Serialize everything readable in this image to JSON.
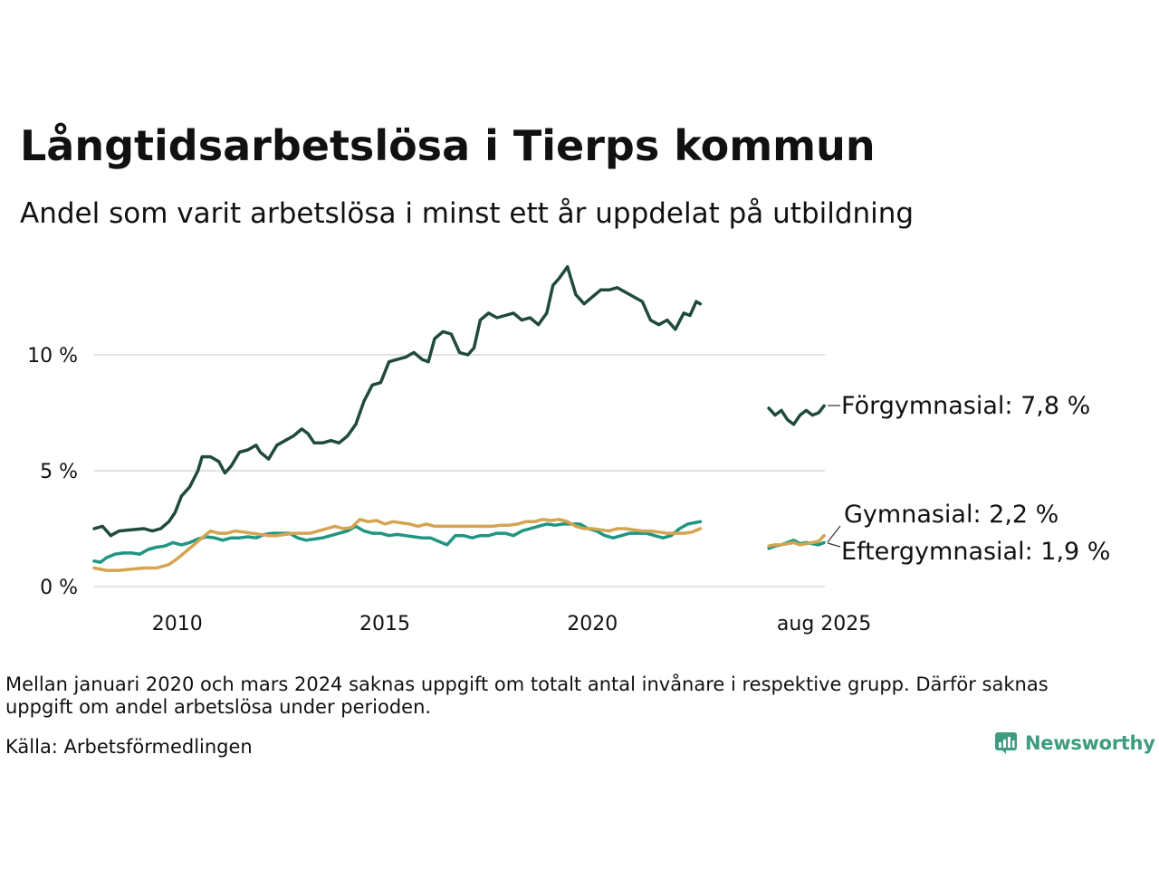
{
  "title": "Långtidsarbetslösa i Tierps kommun",
  "subtitle": "Andel som varit arbetslösa i minst ett år uppdelat på utbildning",
  "note": "Mellan januari 2020 och mars 2024 saknas uppgift om totalt antal invånare i respektive grupp. Därför saknas uppgift om andel arbetslösa under perioden.",
  "source": "Källa: Arbetsförmedlingen",
  "brand": "Newsworthy",
  "colors": {
    "forgymnasial": "#1f4a3c",
    "gymnasial": "#d4a450",
    "eftergymnasial": "#1f9683",
    "grid": "#e3e3e3",
    "brand": "#3e9c80"
  },
  "chart_data": {
    "type": "line",
    "x_unit": "year",
    "xlim": [
      2008.0,
      2025.6
    ],
    "ylim": [
      0,
      14
    ],
    "yticks": [
      {
        "value": 0,
        "label": "0 %"
      },
      {
        "value": 5,
        "label": "5 %"
      },
      {
        "value": 10,
        "label": "10 %"
      }
    ],
    "xticks": [
      {
        "value": 2010,
        "label": "2010"
      },
      {
        "value": 2015,
        "label": "2015"
      },
      {
        "value": 2020,
        "label": "2020"
      },
      {
        "value": 2025.58,
        "label": "aug 2025"
      }
    ],
    "grid": "horizontal",
    "series": [
      {
        "name": "Förgymnasial",
        "color": "#1f4a3c",
        "end_label": "Förgymnasial: 7,8 %",
        "segments": [
          [
            [
              2008.0,
              2.5
            ],
            [
              2008.2,
              2.6
            ],
            [
              2008.4,
              2.2
            ],
            [
              2008.6,
              2.4
            ],
            [
              2008.9,
              2.45
            ],
            [
              2009.2,
              2.5
            ],
            [
              2009.4,
              2.4
            ],
            [
              2009.6,
              2.5
            ],
            [
              2009.8,
              2.8
            ],
            [
              2009.95,
              3.2
            ],
            [
              2010.1,
              3.9
            ],
            [
              2010.3,
              4.3
            ],
            [
              2010.5,
              5.0
            ],
            [
              2010.6,
              5.6
            ],
            [
              2010.8,
              5.6
            ],
            [
              2011.0,
              5.4
            ],
            [
              2011.15,
              4.9
            ],
            [
              2011.3,
              5.2
            ],
            [
              2011.5,
              5.8
            ],
            [
              2011.7,
              5.9
            ],
            [
              2011.9,
              6.1
            ],
            [
              2012.0,
              5.8
            ],
            [
              2012.2,
              5.5
            ],
            [
              2012.4,
              6.1
            ],
            [
              2012.6,
              6.3
            ],
            [
              2012.8,
              6.5
            ],
            [
              2013.0,
              6.8
            ],
            [
              2013.15,
              6.6
            ],
            [
              2013.3,
              6.2
            ],
            [
              2013.5,
              6.2
            ],
            [
              2013.7,
              6.3
            ],
            [
              2013.9,
              6.2
            ],
            [
              2014.1,
              6.5
            ],
            [
              2014.3,
              7.0
            ],
            [
              2014.5,
              8.0
            ],
            [
              2014.7,
              8.7
            ],
            [
              2014.9,
              8.8
            ],
            [
              2015.1,
              9.7
            ],
            [
              2015.3,
              9.8
            ],
            [
              2015.5,
              9.9
            ],
            [
              2015.7,
              10.1
            ],
            [
              2015.9,
              9.8
            ],
            [
              2016.05,
              9.7
            ],
            [
              2016.2,
              10.7
            ],
            [
              2016.4,
              11.0
            ],
            [
              2016.6,
              10.9
            ],
            [
              2016.8,
              10.1
            ],
            [
              2017.0,
              10.0
            ],
            [
              2017.15,
              10.3
            ],
            [
              2017.3,
              11.5
            ],
            [
              2017.5,
              11.8
            ],
            [
              2017.7,
              11.6
            ],
            [
              2017.9,
              11.7
            ],
            [
              2018.1,
              11.8
            ],
            [
              2018.3,
              11.5
            ],
            [
              2018.5,
              11.6
            ],
            [
              2018.7,
              11.3
            ],
            [
              2018.9,
              11.8
            ],
            [
              2019.05,
              13.0
            ],
            [
              2019.2,
              13.3
            ],
            [
              2019.4,
              13.8
            ],
            [
              2019.6,
              12.6
            ],
            [
              2019.8,
              12.2
            ],
            [
              2020.0,
              12.5
            ],
            [
              2020.2,
              12.8
            ],
            [
              2020.4,
              12.8
            ],
            [
              2020.6,
              12.9
            ],
            [
              2020.8,
              12.7
            ],
            [
              2021.0,
              12.5
            ],
            [
              2021.2,
              12.3
            ],
            [
              2021.4,
              11.5
            ],
            [
              2021.6,
              11.3
            ],
            [
              2021.8,
              11.5
            ],
            [
              2022.0,
              11.1
            ],
            [
              2022.2,
              11.8
            ],
            [
              2022.35,
              11.7
            ],
            [
              2022.5,
              12.3
            ],
            [
              2022.6,
              12.2
            ]
          ],
          [
            [
              2024.25,
              7.7
            ],
            [
              2024.4,
              7.4
            ],
            [
              2024.55,
              7.6
            ],
            [
              2024.7,
              7.2
            ],
            [
              2024.85,
              7.0
            ],
            [
              2025.0,
              7.4
            ],
            [
              2025.15,
              7.6
            ],
            [
              2025.3,
              7.4
            ],
            [
              2025.45,
              7.5
            ],
            [
              2025.58,
              7.8
            ]
          ]
        ]
      },
      {
        "name": "Gymnasial",
        "color": "#d4a450",
        "end_label": "Gymnasial: 2,2 %",
        "segments": [
          [
            [
              2008.0,
              0.8
            ],
            [
              2008.3,
              0.7
            ],
            [
              2008.6,
              0.7
            ],
            [
              2008.9,
              0.75
            ],
            [
              2009.2,
              0.8
            ],
            [
              2009.5,
              0.8
            ],
            [
              2009.8,
              0.95
            ],
            [
              2010.0,
              1.2
            ],
            [
              2010.2,
              1.5
            ],
            [
              2010.4,
              1.8
            ],
            [
              2010.6,
              2.1
            ],
            [
              2010.8,
              2.4
            ],
            [
              2011.0,
              2.3
            ],
            [
              2011.2,
              2.3
            ],
            [
              2011.4,
              2.4
            ],
            [
              2011.6,
              2.35
            ],
            [
              2011.8,
              2.3
            ],
            [
              2012.0,
              2.25
            ],
            [
              2012.2,
              2.2
            ],
            [
              2012.4,
              2.2
            ],
            [
              2012.6,
              2.25
            ],
            [
              2012.8,
              2.3
            ],
            [
              2013.0,
              2.3
            ],
            [
              2013.2,
              2.3
            ],
            [
              2013.4,
              2.4
            ],
            [
              2013.6,
              2.5
            ],
            [
              2013.8,
              2.6
            ],
            [
              2014.0,
              2.5
            ],
            [
              2014.2,
              2.55
            ],
            [
              2014.4,
              2.9
            ],
            [
              2014.6,
              2.8
            ],
            [
              2014.8,
              2.85
            ],
            [
              2015.0,
              2.7
            ],
            [
              2015.2,
              2.8
            ],
            [
              2015.4,
              2.75
            ],
            [
              2015.6,
              2.7
            ],
            [
              2015.8,
              2.6
            ],
            [
              2016.0,
              2.7
            ],
            [
              2016.2,
              2.6
            ],
            [
              2016.4,
              2.6
            ],
            [
              2016.6,
              2.6
            ],
            [
              2016.8,
              2.6
            ],
            [
              2017.0,
              2.6
            ],
            [
              2017.2,
              2.6
            ],
            [
              2017.4,
              2.6
            ],
            [
              2017.6,
              2.6
            ],
            [
              2017.8,
              2.65
            ],
            [
              2018.0,
              2.65
            ],
            [
              2018.2,
              2.7
            ],
            [
              2018.4,
              2.8
            ],
            [
              2018.6,
              2.8
            ],
            [
              2018.8,
              2.9
            ],
            [
              2019.0,
              2.85
            ],
            [
              2019.2,
              2.9
            ],
            [
              2019.4,
              2.8
            ],
            [
              2019.6,
              2.6
            ],
            [
              2019.8,
              2.5
            ],
            [
              2020.0,
              2.5
            ],
            [
              2020.2,
              2.45
            ],
            [
              2020.4,
              2.4
            ],
            [
              2020.6,
              2.5
            ],
            [
              2020.8,
              2.5
            ],
            [
              2021.0,
              2.45
            ],
            [
              2021.2,
              2.4
            ],
            [
              2021.4,
              2.4
            ],
            [
              2021.6,
              2.35
            ],
            [
              2021.8,
              2.3
            ],
            [
              2022.0,
              2.3
            ],
            [
              2022.2,
              2.3
            ],
            [
              2022.4,
              2.35
            ],
            [
              2022.6,
              2.5
            ]
          ],
          [
            [
              2024.25,
              1.75
            ],
            [
              2024.4,
              1.8
            ],
            [
              2024.55,
              1.8
            ],
            [
              2024.7,
              1.85
            ],
            [
              2024.85,
              1.9
            ],
            [
              2025.0,
              1.8
            ],
            [
              2025.15,
              1.85
            ],
            [
              2025.3,
              1.9
            ],
            [
              2025.45,
              1.95
            ],
            [
              2025.58,
              2.2
            ]
          ]
        ]
      },
      {
        "name": "Eftergymnasial",
        "color": "#1f9683",
        "end_label": "Eftergymnasial: 1,9 %",
        "segments": [
          [
            [
              2008.0,
              1.1
            ],
            [
              2008.15,
              1.05
            ],
            [
              2008.3,
              1.25
            ],
            [
              2008.5,
              1.4
            ],
            [
              2008.7,
              1.45
            ],
            [
              2008.9,
              1.45
            ],
            [
              2009.1,
              1.4
            ],
            [
              2009.3,
              1.6
            ],
            [
              2009.5,
              1.7
            ],
            [
              2009.7,
              1.75
            ],
            [
              2009.9,
              1.9
            ],
            [
              2010.1,
              1.8
            ],
            [
              2010.3,
              1.9
            ],
            [
              2010.5,
              2.05
            ],
            [
              2010.7,
              2.15
            ],
            [
              2010.9,
              2.1
            ],
            [
              2011.1,
              2.0
            ],
            [
              2011.3,
              2.1
            ],
            [
              2011.5,
              2.1
            ],
            [
              2011.7,
              2.15
            ],
            [
              2011.9,
              2.1
            ],
            [
              2012.1,
              2.25
            ],
            [
              2012.3,
              2.3
            ],
            [
              2012.5,
              2.3
            ],
            [
              2012.7,
              2.3
            ],
            [
              2012.9,
              2.1
            ],
            [
              2013.1,
              2.0
            ],
            [
              2013.3,
              2.05
            ],
            [
              2013.5,
              2.1
            ],
            [
              2013.7,
              2.2
            ],
            [
              2013.9,
              2.3
            ],
            [
              2014.1,
              2.4
            ],
            [
              2014.3,
              2.6
            ],
            [
              2014.5,
              2.4
            ],
            [
              2014.7,
              2.3
            ],
            [
              2014.9,
              2.3
            ],
            [
              2015.1,
              2.2
            ],
            [
              2015.3,
              2.25
            ],
            [
              2015.5,
              2.2
            ],
            [
              2015.7,
              2.15
            ],
            [
              2015.9,
              2.1
            ],
            [
              2016.1,
              2.1
            ],
            [
              2016.3,
              1.95
            ],
            [
              2016.5,
              1.8
            ],
            [
              2016.7,
              2.2
            ],
            [
              2016.9,
              2.2
            ],
            [
              2017.1,
              2.1
            ],
            [
              2017.3,
              2.2
            ],
            [
              2017.5,
              2.2
            ],
            [
              2017.7,
              2.3
            ],
            [
              2017.9,
              2.3
            ],
            [
              2018.1,
              2.2
            ],
            [
              2018.3,
              2.4
            ],
            [
              2018.5,
              2.5
            ],
            [
              2018.7,
              2.6
            ],
            [
              2018.9,
              2.7
            ],
            [
              2019.1,
              2.65
            ],
            [
              2019.3,
              2.7
            ],
            [
              2019.5,
              2.7
            ],
            [
              2019.7,
              2.7
            ],
            [
              2019.9,
              2.5
            ],
            [
              2020.1,
              2.4
            ],
            [
              2020.3,
              2.2
            ],
            [
              2020.5,
              2.1
            ],
            [
              2020.7,
              2.2
            ],
            [
              2020.9,
              2.3
            ],
            [
              2021.1,
              2.3
            ],
            [
              2021.3,
              2.3
            ],
            [
              2021.5,
              2.2
            ],
            [
              2021.7,
              2.1
            ],
            [
              2021.9,
              2.2
            ],
            [
              2022.1,
              2.5
            ],
            [
              2022.3,
              2.7
            ],
            [
              2022.6,
              2.8
            ]
          ],
          [
            [
              2024.25,
              1.65
            ],
            [
              2024.4,
              1.75
            ],
            [
              2024.55,
              1.8
            ],
            [
              2024.7,
              1.9
            ],
            [
              2024.85,
              2.0
            ],
            [
              2025.0,
              1.85
            ],
            [
              2025.15,
              1.9
            ],
            [
              2025.3,
              1.85
            ],
            [
              2025.45,
              1.8
            ],
            [
              2025.58,
              1.9
            ]
          ]
        ]
      }
    ]
  }
}
